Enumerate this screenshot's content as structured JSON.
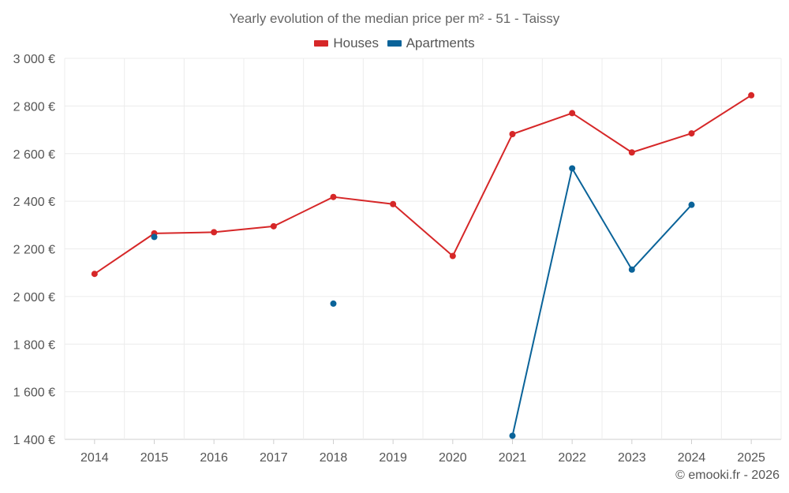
{
  "chart_data": {
    "type": "line",
    "title": "Yearly evolution of the median price per m² - 51 - Taissy",
    "categories": [
      "2014",
      "2015",
      "2016",
      "2017",
      "2018",
      "2019",
      "2020",
      "2021",
      "2022",
      "2023",
      "2024",
      "2025"
    ],
    "ylim": [
      1400,
      3000
    ],
    "y_ticks": [
      1400,
      1600,
      1800,
      2000,
      2200,
      2400,
      2600,
      2800,
      3000
    ],
    "y_tick_labels": [
      "1 400 €",
      "1 600 €",
      "1 800 €",
      "2 000 €",
      "2 200 €",
      "2 400 €",
      "2 600 €",
      "2 800 €",
      "3 000 €"
    ],
    "grid": true,
    "legend_position": "top-center",
    "series": [
      {
        "name": "Houses",
        "color": "#d62728",
        "values": [
          2095,
          2265,
          2270,
          2295,
          2418,
          2388,
          2170,
          2682,
          2770,
          2605,
          2685,
          2845
        ]
      },
      {
        "name": "Apartments",
        "color": "#0a6399",
        "values": [
          null,
          2250,
          null,
          null,
          1970,
          null,
          null,
          1415,
          2538,
          2113,
          2385,
          null
        ]
      }
    ]
  },
  "credit": "© emooki.fr - 2026"
}
